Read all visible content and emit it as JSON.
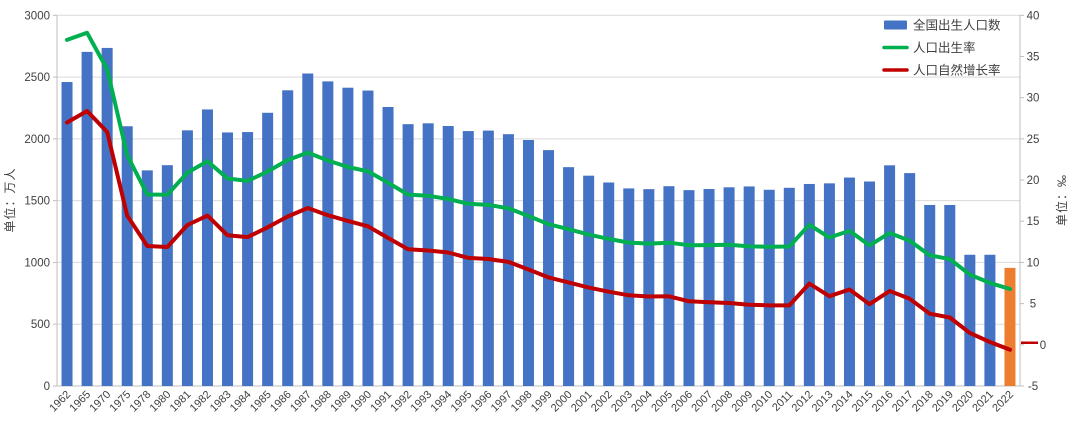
{
  "chart_data": {
    "type": "bar",
    "subtype": "combo-bar-line-dual-axis",
    "title": "",
    "categories": [
      "1962",
      "1965",
      "1970",
      "1975",
      "1978",
      "1980",
      "1981",
      "1982",
      "1983",
      "1984",
      "1985",
      "1986",
      "1987",
      "1988",
      "1989",
      "1990",
      "1991",
      "1992",
      "1993",
      "1994",
      "1995",
      "1996",
      "1997",
      "1998",
      "1999",
      "2000",
      "2001",
      "2002",
      "2003",
      "2004",
      "2005",
      "2006",
      "2007",
      "2008",
      "2009",
      "2010",
      "2011",
      "2012",
      "2013",
      "2014",
      "2015",
      "2016",
      "2017",
      "2018",
      "2019",
      "2020",
      "2021",
      "2022"
    ],
    "series": [
      {
        "name": "全国出生人口数",
        "type": "bar",
        "axis": "left",
        "color": "#4472C4",
        "highlight": {
          "index": 47,
          "color": "#ED7D31"
        },
        "values": [
          2460,
          2704,
          2736,
          2102,
          1745,
          1787,
          2069,
          2238,
          2052,
          2055,
          2211,
          2393,
          2529,
          2465,
          2414,
          2391,
          2258,
          2119,
          2126,
          2104,
          2063,
          2067,
          2038,
          1991,
          1909,
          1771,
          1702,
          1647,
          1599,
          1593,
          1617,
          1585,
          1594,
          1608,
          1615,
          1588,
          1604,
          1635,
          1640,
          1687,
          1655,
          1786,
          1723,
          1465,
          1465,
          1062,
          1062,
          956
        ]
      },
      {
        "name": "人口出生率",
        "type": "line",
        "axis": "right",
        "color": "#00B050",
        "values": [
          37.01,
          37.88,
          33.43,
          23.01,
          18.25,
          18.21,
          20.91,
          22.28,
          20.19,
          19.9,
          21.04,
          22.43,
          23.33,
          22.37,
          21.58,
          21.06,
          19.68,
          18.24,
          18.09,
          17.7,
          17.12,
          16.98,
          16.57,
          15.64,
          14.64,
          14.03,
          13.38,
          12.86,
          12.41,
          12.29,
          12.4,
          12.09,
          12.1,
          12.14,
          11.95,
          11.9,
          11.93,
          14.57,
          13.03,
          13.83,
          12.07,
          13.57,
          12.64,
          10.86,
          10.41,
          8.52,
          7.52,
          6.77
        ]
      },
      {
        "name": "人口自然增长率",
        "type": "line",
        "axis": "right",
        "color": "#C00000",
        "values": [
          26.99,
          28.38,
          25.83,
          15.69,
          12.0,
          11.87,
          14.55,
          15.68,
          13.29,
          13.08,
          14.26,
          15.57,
          16.61,
          15.73,
          15.04,
          14.39,
          12.98,
          11.6,
          11.45,
          11.21,
          10.55,
          10.42,
          10.06,
          9.14,
          8.18,
          7.58,
          6.95,
          6.45,
          6.01,
          5.87,
          5.89,
          5.28,
          5.17,
          5.08,
          4.87,
          4.79,
          4.79,
          7.43,
          5.9,
          6.71,
          4.93,
          6.53,
          5.58,
          3.78,
          3.32,
          1.45,
          0.34,
          -0.6
        ]
      }
    ],
    "left_axis": {
      "title": "单位：万人",
      "min": 0,
      "max": 3000,
      "tick_interval": 500,
      "tick_labels": [
        "3000",
        "2500",
        "2000",
        "1500",
        "1000",
        "500",
        "0"
      ]
    },
    "right_axis": {
      "title": "单位：‰",
      "min": -5,
      "max": 40,
      "tick_interval": 5,
      "tick_labels": [
        "40",
        "35",
        "30",
        "25",
        "20",
        "15",
        "10",
        "5",
        "0",
        "-5"
      ],
      "zero_dash_color": "#C00000"
    },
    "legend": {
      "position": "top-right-inside",
      "items": [
        "全国出生人口数",
        "人口出生率",
        "人口自然增长率"
      ]
    },
    "grid": true,
    "colors": {
      "grid": "#D9D9D9",
      "axis_line": "#BFBFBF",
      "text": "#404040",
      "background": "#FFFFFF"
    }
  }
}
